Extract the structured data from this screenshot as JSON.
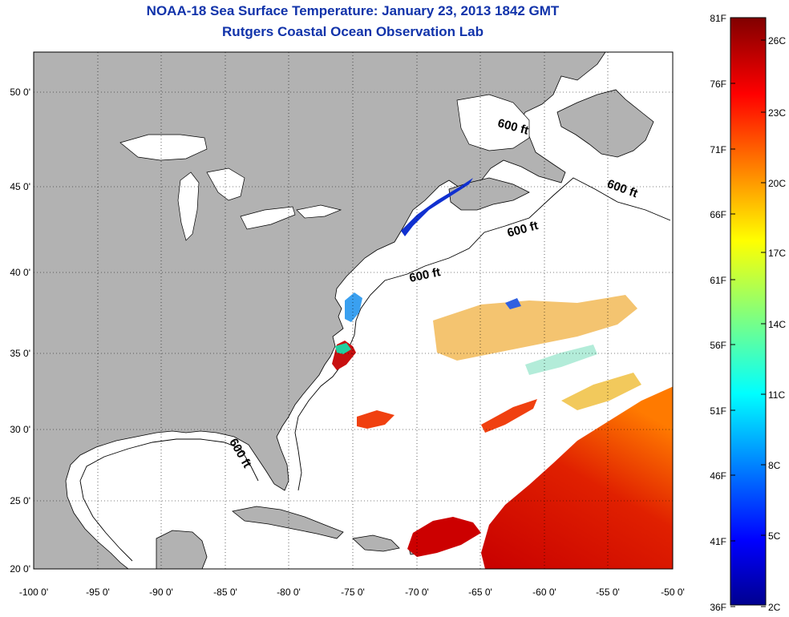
{
  "header": {
    "title": "NOAA-18 Sea Surface Temperature:  January 23, 2013 1842 GMT",
    "subtitle": "Rutgers Coastal Ocean Observation Lab"
  },
  "map": {
    "lon_ticks": [
      "-100 0'",
      "-95 0'",
      "-90 0'",
      "-85 0'",
      "-80 0'",
      "-75 0'",
      "-70 0'",
      "-65 0'",
      "-60 0'",
      "-55 0'",
      "-50 0'"
    ],
    "lat_ticks": [
      "50 0'",
      "45 0'",
      "40 0'",
      "35 0'",
      "30 0'",
      "25 0'",
      "20 0'"
    ],
    "contour_labels": [
      "600 ft",
      "600 ft",
      "600 ft",
      "600 ft",
      "600 ft"
    ],
    "land_color": "#b2b2b2",
    "ocean_color": "#ffffff"
  },
  "colorbar": {
    "fahrenheit": [
      "81F",
      "76F",
      "71F",
      "66F",
      "61F",
      "56F",
      "51F",
      "46F",
      "41F",
      "36F"
    ],
    "celsius": [
      "26C",
      "23C",
      "20C",
      "17C",
      "14C",
      "11C",
      "8C",
      "5C",
      "2C"
    ],
    "colormap": "jet"
  }
}
